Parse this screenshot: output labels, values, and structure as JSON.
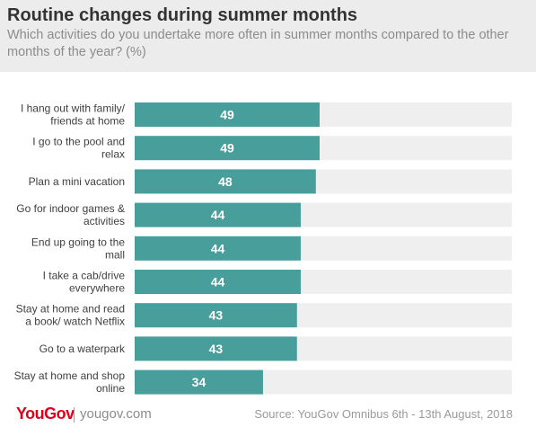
{
  "header": {
    "title": "Routine changes during summer months",
    "subtitle": "Which activities do you undertake more often in summer months compared to the other months of the year? (%)"
  },
  "footer": {
    "logo": "YouGov",
    "site": "yougov.com",
    "source": "Source: YouGov Omnibus 6th - 13th August, 2018"
  },
  "colors": {
    "bar": "#479e9b",
    "track": "#efefef",
    "label": "#3f3f3f",
    "value_text": "#ffffff",
    "brand": "#e0001b"
  },
  "chart_data": {
    "type": "bar",
    "orientation": "horizontal",
    "xlim": [
      0,
      100
    ],
    "categories": [
      [
        "I hang out with family/",
        "friends at home"
      ],
      [
        "I go to the pool and",
        "relax"
      ],
      [
        "Plan a mini vacation"
      ],
      [
        "Go for indoor games &",
        "activities"
      ],
      [
        "End up going to the",
        "mall"
      ],
      [
        "I take a cab/drive",
        "everywhere"
      ],
      [
        "Stay at home and read",
        "a book/ watch Netflix"
      ],
      [
        "Go to a waterpark"
      ],
      [
        "Stay at home and shop",
        "online"
      ]
    ],
    "values": [
      49,
      49,
      48,
      44,
      44,
      44,
      43,
      43,
      34
    ]
  }
}
